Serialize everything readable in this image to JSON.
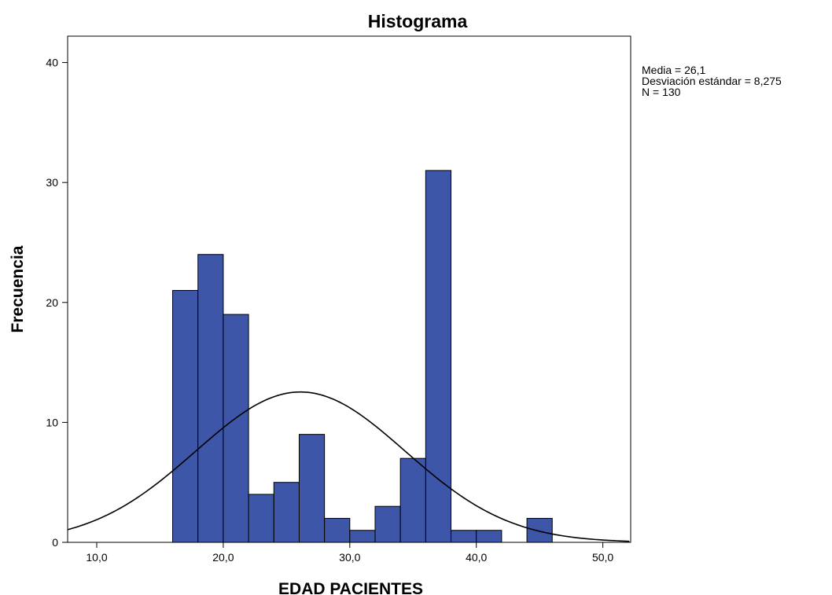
{
  "chart_data": {
    "type": "bar",
    "title": "Histograma",
    "xlabel": "EDAD PACIENTES",
    "ylabel": "Frecuencia",
    "xlim": [
      7.7,
      52.2
    ],
    "ylim": [
      0,
      40
    ],
    "grid": false,
    "bar_color": "#3d56a8",
    "curve_color": "#000000",
    "x_ticks": [
      {
        "value": 10,
        "label": "10,0"
      },
      {
        "value": 20,
        "label": "20,0"
      },
      {
        "value": 30,
        "label": "30,0"
      },
      {
        "value": 40,
        "label": "40,0"
      },
      {
        "value": 50,
        "label": "50,0"
      }
    ],
    "y_ticks": [
      {
        "value": 0,
        "label": "0"
      },
      {
        "value": 10,
        "label": "10"
      },
      {
        "value": 20,
        "label": "20"
      },
      {
        "value": 30,
        "label": "30"
      },
      {
        "value": 40,
        "label": "40"
      }
    ],
    "bins": [
      {
        "start": 16,
        "end": 18,
        "count": 21
      },
      {
        "start": 18,
        "end": 20,
        "count": 24
      },
      {
        "start": 20,
        "end": 22,
        "count": 19
      },
      {
        "start": 22,
        "end": 24,
        "count": 4
      },
      {
        "start": 24,
        "end": 26,
        "count": 5
      },
      {
        "start": 26,
        "end": 28,
        "count": 9
      },
      {
        "start": 28,
        "end": 30,
        "count": 2
      },
      {
        "start": 30,
        "end": 32,
        "count": 1
      },
      {
        "start": 32,
        "end": 34,
        "count": 3
      },
      {
        "start": 34,
        "end": 36,
        "count": 7
      },
      {
        "start": 36,
        "end": 38,
        "count": 31
      },
      {
        "start": 38,
        "end": 40,
        "count": 1
      },
      {
        "start": 40,
        "end": 42,
        "count": 1
      },
      {
        "start": 44,
        "end": 46,
        "count": 2
      }
    ],
    "normal_curve": {
      "mean": 26.1,
      "sd": 8.275,
      "n": 130,
      "bin_width": 2
    }
  },
  "stats": {
    "mean_label": "Media = 26,1",
    "sd_label": "Desviación estándar = 8,275",
    "n_label": "N = 130"
  }
}
